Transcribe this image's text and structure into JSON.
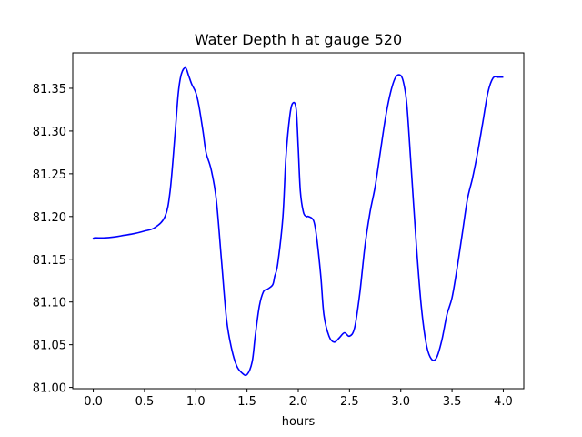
{
  "chart_data": {
    "type": "line",
    "title": "Water Depth h at gauge 520",
    "xlabel": "hours",
    "ylabel": "",
    "xlim": [
      -0.2,
      4.2
    ],
    "ylim": [
      80.9985,
      81.3915
    ],
    "xticks": [
      0.0,
      0.5,
      1.0,
      1.5,
      2.0,
      2.5,
      3.0,
      3.5,
      4.0
    ],
    "xtick_labels": [
      "0.0",
      "0.5",
      "1.0",
      "1.5",
      "2.0",
      "2.5",
      "3.0",
      "3.5",
      "4.0"
    ],
    "yticks": [
      81.0,
      81.05,
      81.1,
      81.15,
      81.2,
      81.25,
      81.3,
      81.35
    ],
    "ytick_labels": [
      "81.00",
      "81.05",
      "81.10",
      "81.15",
      "81.20",
      "81.25",
      "81.30",
      "81.35"
    ],
    "grid": false,
    "series": [
      {
        "color": "#0000ff",
        "x": [
          0.0,
          0.01,
          0.1,
          0.2,
          0.3,
          0.4,
          0.5,
          0.6,
          0.7,
          0.75,
          0.8,
          0.83,
          0.86,
          0.9,
          0.93,
          0.96,
          1.0,
          1.03,
          1.07,
          1.1,
          1.15,
          1.2,
          1.25,
          1.3,
          1.35,
          1.4,
          1.45,
          1.5,
          1.55,
          1.58,
          1.62,
          1.66,
          1.7,
          1.75,
          1.77,
          1.8,
          1.85,
          1.88,
          1.92,
          1.95,
          1.98,
          2.0,
          2.02,
          2.05,
          2.08,
          2.1,
          2.15,
          2.18,
          2.22,
          2.25,
          2.3,
          2.35,
          2.4,
          2.45,
          2.5,
          2.55,
          2.6,
          2.65,
          2.7,
          2.75,
          2.8,
          2.85,
          2.9,
          2.95,
          3.0,
          3.03,
          3.06,
          3.1,
          3.15,
          3.2,
          3.25,
          3.3,
          3.35,
          3.4,
          3.45,
          3.5,
          3.55,
          3.6,
          3.65,
          3.7,
          3.75,
          3.8,
          3.85,
          3.9,
          3.95,
          4.0
        ],
        "y": [
          81.173,
          81.175,
          81.175,
          81.176,
          81.178,
          81.18,
          81.183,
          81.187,
          81.2,
          81.23,
          81.3,
          81.345,
          81.367,
          81.374,
          81.365,
          81.355,
          81.345,
          81.33,
          81.3,
          81.275,
          81.255,
          81.22,
          81.15,
          81.08,
          81.045,
          81.025,
          81.017,
          81.015,
          81.03,
          81.06,
          81.095,
          81.112,
          81.115,
          81.12,
          81.13,
          81.145,
          81.2,
          81.27,
          81.32,
          81.333,
          81.325,
          81.28,
          81.23,
          81.205,
          81.2,
          81.2,
          81.195,
          81.175,
          81.13,
          81.085,
          81.06,
          81.053,
          81.058,
          81.064,
          81.06,
          81.07,
          81.11,
          81.165,
          81.205,
          81.235,
          81.275,
          81.315,
          81.345,
          81.363,
          81.365,
          81.355,
          81.33,
          81.26,
          81.17,
          81.095,
          81.05,
          81.033,
          81.035,
          81.055,
          81.085,
          81.105,
          81.14,
          81.18,
          81.22,
          81.245,
          81.275,
          81.31,
          81.345,
          81.362,
          81.363,
          81.363
        ]
      }
    ]
  }
}
